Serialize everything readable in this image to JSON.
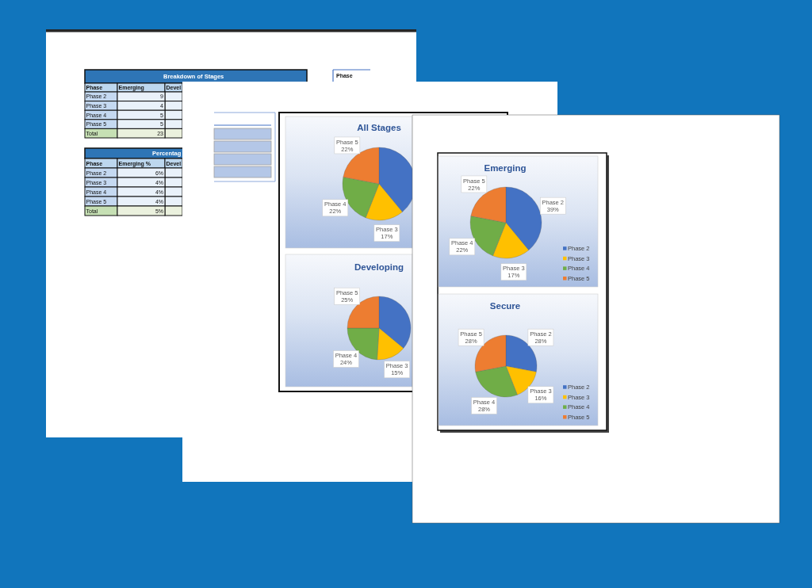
{
  "chart_data": [
    {
      "type": "other",
      "title": "Breakdown of Stages",
      "categories": [
        "Phase 2",
        "Phase 3",
        "Phase 4",
        "Phase 5",
        "Total"
      ],
      "series": [
        {
          "name": "Emerging",
          "values": [
            9,
            4,
            5,
            5,
            23
          ]
        }
      ],
      "data_labels": true,
      "annotations": [
        "Phase",
        "Devel"
      ]
    },
    {
      "type": "other",
      "title": "Phase"
    },
    {
      "type": "other",
      "title": "Percentag",
      "categories": [
        "Phase 2",
        "Phase 3",
        "Phase 4",
        "Phase 5",
        "Total"
      ],
      "series": [
        {
          "name": "Emerging %",
          "values": [
            6,
            4,
            4,
            4,
            5
          ],
          "value_labels": [
            "6%",
            "4%",
            "4%",
            "4%",
            "5%"
          ]
        }
      ],
      "annotations": [
        "Phase",
        "Devel"
      ]
    },
    {
      "type": "pie",
      "title": "All Stages",
      "categories": [
        null,
        "Phase 3",
        "Phase 4",
        "Phase 5"
      ],
      "values": [
        39,
        17,
        22,
        22
      ],
      "colors": [
        "#4472c4",
        "#ffc000",
        "#70ad47",
        "#ed7d31"
      ],
      "value_labels": [
        null,
        "17%",
        "22%",
        "22%"
      ]
    },
    {
      "type": "pie",
      "title": "Developing",
      "categories": [
        null,
        "Phase 3",
        "Phase 4",
        "Phase 5"
      ],
      "values": [
        36,
        15,
        24,
        25
      ],
      "colors": [
        "#4472c4",
        "#ffc000",
        "#70ad47",
        "#ed7d31"
      ],
      "value_labels": [
        null,
        "15%",
        "24%",
        "25%"
      ]
    },
    {
      "type": "pie",
      "title": "Emerging",
      "categories": [
        "Phase 2",
        "Phase 3",
        "Phase 4",
        "Phase 5"
      ],
      "values": [
        39,
        17,
        22,
        22
      ],
      "colors": [
        "#4472c4",
        "#ffc000",
        "#70ad47",
        "#ed7d31"
      ],
      "value_labels": [
        "39%",
        "17%",
        "22%",
        "22%"
      ],
      "legend": "bottom right"
    },
    {
      "type": "pie",
      "title": "Secure",
      "categories": [
        "Phase 2",
        "Phase 3",
        "Phase 4",
        "Phase 5"
      ],
      "values": [
        28,
        16,
        28,
        28
      ],
      "colors": [
        "#4472c4",
        "#ffc000",
        "#70ad47",
        "#ed7d31"
      ],
      "value_labels": [
        "28%",
        "16%",
        "28%",
        "28%"
      ],
      "legend": "bottom right"
    }
  ]
}
